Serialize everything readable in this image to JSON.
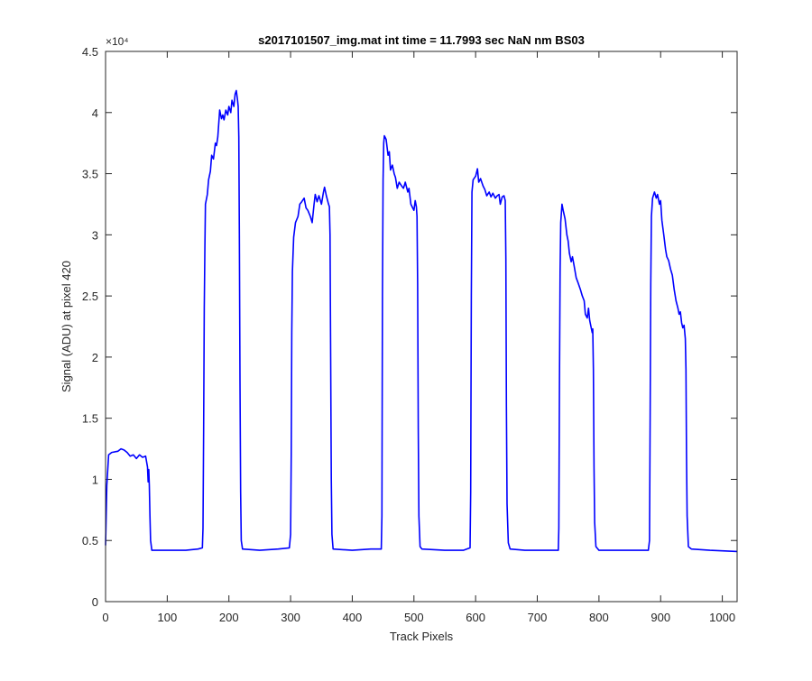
{
  "chart_data": {
    "type": "line",
    "title": "s2017101507_img.mat int time = 11.7993 sec  NaN nm BS03",
    "xlabel": "Track Pixels",
    "ylabel": "Signal (ADU) at pixel 420",
    "xlim": [
      0,
      1024
    ],
    "ylim": [
      0,
      45000
    ],
    "x_ticks": [
      0,
      100,
      200,
      300,
      400,
      500,
      600,
      700,
      800,
      900,
      1000
    ],
    "x_tick_labels": [
      "0",
      "100",
      "200",
      "300",
      "400",
      "500",
      "600",
      "700",
      "800",
      "900",
      "1000"
    ],
    "y_ticks": [
      0,
      5000,
      10000,
      15000,
      20000,
      25000,
      30000,
      35000,
      40000,
      45000
    ],
    "y_tick_labels": [
      "0",
      "0.5",
      "1",
      "1.5",
      "2",
      "2.5",
      "3",
      "3.5",
      "4",
      "4.5"
    ],
    "y_exponent_label": "×10⁴",
    "grid": false,
    "legend": "none",
    "series": [
      {
        "color": "#0000ff",
        "points": [
          [
            0,
            4600
          ],
          [
            2,
            9500
          ],
          [
            5,
            12000
          ],
          [
            10,
            12200
          ],
          [
            20,
            12300
          ],
          [
            25,
            12500
          ],
          [
            30,
            12400
          ],
          [
            35,
            12200
          ],
          [
            40,
            11900
          ],
          [
            45,
            12000
          ],
          [
            50,
            11700
          ],
          [
            55,
            12000
          ],
          [
            60,
            11800
          ],
          [
            65,
            11900
          ],
          [
            68,
            11000
          ],
          [
            69,
            9800
          ],
          [
            70,
            10800
          ],
          [
            71,
            9500
          ],
          [
            72,
            7000
          ],
          [
            73,
            5000
          ],
          [
            75,
            4200
          ],
          [
            100,
            4200
          ],
          [
            130,
            4200
          ],
          [
            150,
            4300
          ],
          [
            157,
            4400
          ],
          [
            158,
            6000
          ],
          [
            159,
            14000
          ],
          [
            160,
            24000
          ],
          [
            161,
            29000
          ],
          [
            162,
            32500
          ],
          [
            165,
            33300
          ],
          [
            167,
            34500
          ],
          [
            170,
            35200
          ],
          [
            172,
            36500
          ],
          [
            175,
            36200
          ],
          [
            178,
            37500
          ],
          [
            180,
            37300
          ],
          [
            182,
            38000
          ],
          [
            185,
            40200
          ],
          [
            188,
            39500
          ],
          [
            190,
            39800
          ],
          [
            192,
            39400
          ],
          [
            195,
            40200
          ],
          [
            198,
            39800
          ],
          [
            200,
            40500
          ],
          [
            203,
            40000
          ],
          [
            205,
            41000
          ],
          [
            208,
            40500
          ],
          [
            210,
            41500
          ],
          [
            212,
            41800
          ],
          [
            214,
            41000
          ],
          [
            215,
            40500
          ],
          [
            216,
            38000
          ],
          [
            217,
            30000
          ],
          [
            218,
            18000
          ],
          [
            219,
            9000
          ],
          [
            220,
            5000
          ],
          [
            222,
            4300
          ],
          [
            250,
            4200
          ],
          [
            280,
            4300
          ],
          [
            298,
            4400
          ],
          [
            300,
            5500
          ],
          [
            301,
            12000
          ],
          [
            302,
            22000
          ],
          [
            303,
            27000
          ],
          [
            305,
            29800
          ],
          [
            308,
            31000
          ],
          [
            312,
            31500
          ],
          [
            315,
            32500
          ],
          [
            318,
            32700
          ],
          [
            322,
            33000
          ],
          [
            325,
            32200
          ],
          [
            328,
            32000
          ],
          [
            332,
            31500
          ],
          [
            335,
            31000
          ],
          [
            338,
            32500
          ],
          [
            340,
            33300
          ],
          [
            343,
            32700
          ],
          [
            346,
            33200
          ],
          [
            350,
            32500
          ],
          [
            353,
            33400
          ],
          [
            355,
            33900
          ],
          [
            358,
            33200
          ],
          [
            361,
            32600
          ],
          [
            363,
            32300
          ],
          [
            364,
            30000
          ],
          [
            365,
            20000
          ],
          [
            366,
            10000
          ],
          [
            367,
            5500
          ],
          [
            369,
            4300
          ],
          [
            400,
            4200
          ],
          [
            430,
            4300
          ],
          [
            447,
            4300
          ],
          [
            448,
            7000
          ],
          [
            449,
            25000
          ],
          [
            450,
            34500
          ],
          [
            451,
            37500
          ],
          [
            452,
            38100
          ],
          [
            455,
            37800
          ],
          [
            458,
            36500
          ],
          [
            460,
            36800
          ],
          [
            462,
            35300
          ],
          [
            465,
            35700
          ],
          [
            468,
            35000
          ],
          [
            470,
            34700
          ],
          [
            473,
            33800
          ],
          [
            476,
            34300
          ],
          [
            480,
            34000
          ],
          [
            483,
            33800
          ],
          [
            486,
            34300
          ],
          [
            490,
            33500
          ],
          [
            492,
            33800
          ],
          [
            495,
            32500
          ],
          [
            498,
            32200
          ],
          [
            500,
            32000
          ],
          [
            502,
            32800
          ],
          [
            504,
            32300
          ],
          [
            505,
            31500
          ],
          [
            506,
            26000
          ],
          [
            507,
            14000
          ],
          [
            508,
            7000
          ],
          [
            510,
            4500
          ],
          [
            513,
            4300
          ],
          [
            550,
            4200
          ],
          [
            580,
            4200
          ],
          [
            591,
            4400
          ],
          [
            592,
            9000
          ],
          [
            593,
            25000
          ],
          [
            594,
            33500
          ],
          [
            596,
            34500
          ],
          [
            600,
            34800
          ],
          [
            603,
            35400
          ],
          [
            605,
            34300
          ],
          [
            608,
            34600
          ],
          [
            612,
            34000
          ],
          [
            615,
            33700
          ],
          [
            618,
            33200
          ],
          [
            622,
            33500
          ],
          [
            625,
            33100
          ],
          [
            628,
            33400
          ],
          [
            632,
            33000
          ],
          [
            635,
            33200
          ],
          [
            638,
            33300
          ],
          [
            640,
            32500
          ],
          [
            643,
            33100
          ],
          [
            646,
            33200
          ],
          [
            648,
            32800
          ],
          [
            649,
            28000
          ],
          [
            650,
            16000
          ],
          [
            651,
            8000
          ],
          [
            653,
            4800
          ],
          [
            656,
            4300
          ],
          [
            680,
            4200
          ],
          [
            710,
            4200
          ],
          [
            734,
            4200
          ],
          [
            735,
            6000
          ],
          [
            736,
            18000
          ],
          [
            737,
            27000
          ],
          [
            738,
            31000
          ],
          [
            740,
            32500
          ],
          [
            742,
            32000
          ],
          [
            745,
            31300
          ],
          [
            748,
            30000
          ],
          [
            750,
            29500
          ],
          [
            752,
            28500
          ],
          [
            755,
            27800
          ],
          [
            757,
            28200
          ],
          [
            760,
            27400
          ],
          [
            763,
            26500
          ],
          [
            766,
            26100
          ],
          [
            770,
            25500
          ],
          [
            773,
            25000
          ],
          [
            776,
            24600
          ],
          [
            778,
            23500
          ],
          [
            781,
            23200
          ],
          [
            783,
            24000
          ],
          [
            785,
            23000
          ],
          [
            787,
            22500
          ],
          [
            789,
            22000
          ],
          [
            790,
            22300
          ],
          [
            791,
            19000
          ],
          [
            792,
            11000
          ],
          [
            793,
            6500
          ],
          [
            795,
            4500
          ],
          [
            800,
            4200
          ],
          [
            850,
            4200
          ],
          [
            880,
            4200
          ],
          [
            882,
            5000
          ],
          [
            883,
            15000
          ],
          [
            884,
            26000
          ],
          [
            885,
            31500
          ],
          [
            887,
            33000
          ],
          [
            890,
            33500
          ],
          [
            893,
            33000
          ],
          [
            895,
            33300
          ],
          [
            898,
            32500
          ],
          [
            900,
            32800
          ],
          [
            902,
            31200
          ],
          [
            905,
            30000
          ],
          [
            908,
            28800
          ],
          [
            910,
            28200
          ],
          [
            913,
            27900
          ],
          [
            916,
            27200
          ],
          [
            919,
            26700
          ],
          [
            922,
            25500
          ],
          [
            925,
            24600
          ],
          [
            928,
            24000
          ],
          [
            930,
            23500
          ],
          [
            932,
            23700
          ],
          [
            934,
            22800
          ],
          [
            936,
            22400
          ],
          [
            938,
            22600
          ],
          [
            940,
            21500
          ],
          [
            941,
            19000
          ],
          [
            942,
            12000
          ],
          [
            943,
            7000
          ],
          [
            945,
            4500
          ],
          [
            950,
            4300
          ],
          [
            980,
            4200
          ],
          [
            1000,
            4150
          ],
          [
            1024,
            4100
          ]
        ]
      }
    ]
  }
}
